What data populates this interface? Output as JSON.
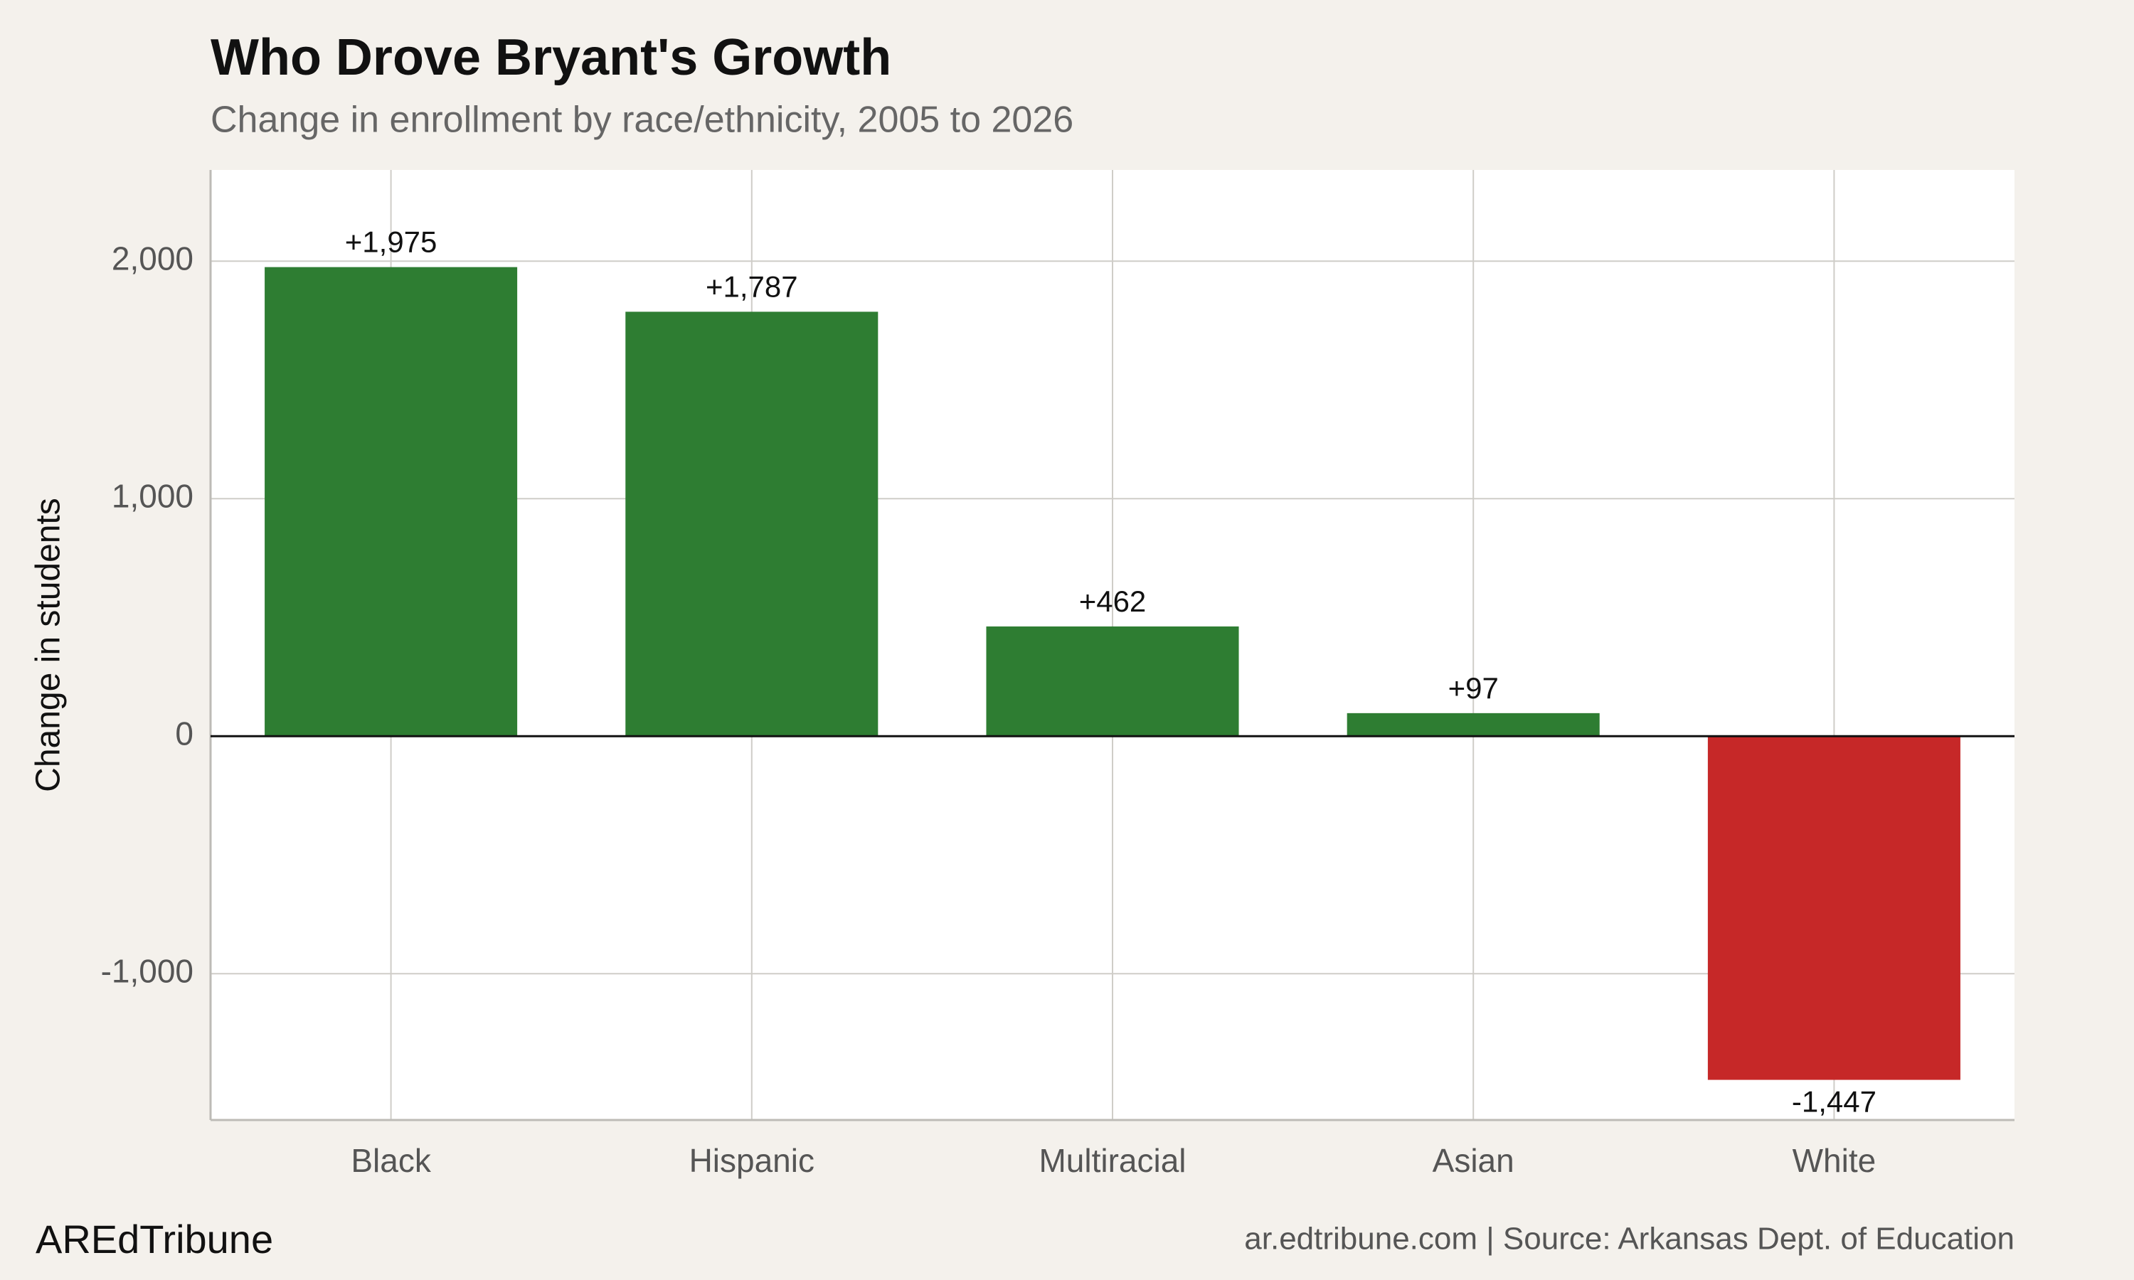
{
  "chart_data": {
    "type": "bar",
    "title": "Who Drove Bryant's Growth",
    "subtitle": "Change in enrollment by race/ethnicity, 2005 to 2026",
    "y_label": "Change in students",
    "categories": [
      "Black",
      "Hispanic",
      "Multiracial",
      "Asian",
      "White"
    ],
    "values": [
      1975,
      1787,
      462,
      97,
      -1447
    ],
    "value_labels": [
      "+1,975",
      "+1,787",
      "+462",
      "+97",
      "-1,447"
    ],
    "colors": [
      "#2e7d32",
      "#2e7d32",
      "#2e7d32",
      "#2e7d32",
      "#c62828"
    ],
    "ylim": [
      -1616,
      2384
    ],
    "yticks": [
      {
        "value": -1000,
        "label": "-1,000"
      },
      0,
      {
        "value": 1000,
        "label": "1,000"
      },
      {
        "value": 2000,
        "label": "2,000"
      }
    ],
    "grid": true,
    "brand": "AREdTribune",
    "source": "ar.edtribune.com | Source: Arkansas Dept. of Education"
  }
}
